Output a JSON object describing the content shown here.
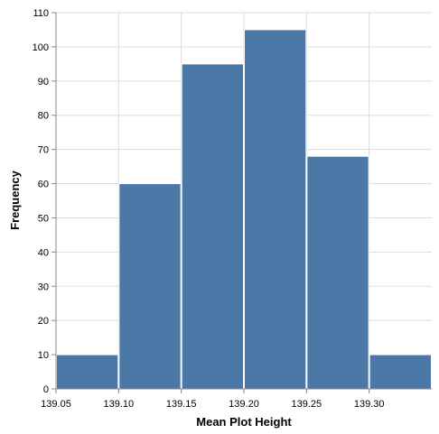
{
  "chart_data": {
    "type": "histogram",
    "x_label": "Mean Plot Height",
    "y_label": "Frequency",
    "bins": [
      139.05,
      139.1,
      139.15,
      139.2,
      139.25,
      139.3,
      139.35
    ],
    "values": [
      10,
      60,
      95,
      105,
      68,
      10
    ],
    "color": "#4c78a8",
    "xlim": [
      139.05,
      139.35
    ],
    "xticks": [
      139.05,
      {
        "value": 139.1,
        "label": "139.10"
      },
      139.15,
      {
        "value": 139.2,
        "label": "139.20"
      },
      139.25,
      {
        "value": 139.3,
        "label": "139.30"
      }
    ],
    "ylim": [
      0,
      110
    ],
    "yticks": [
      0,
      10,
      20,
      30,
      40,
      50,
      60,
      70,
      80,
      90,
      100,
      110
    ],
    "grid": true
  }
}
